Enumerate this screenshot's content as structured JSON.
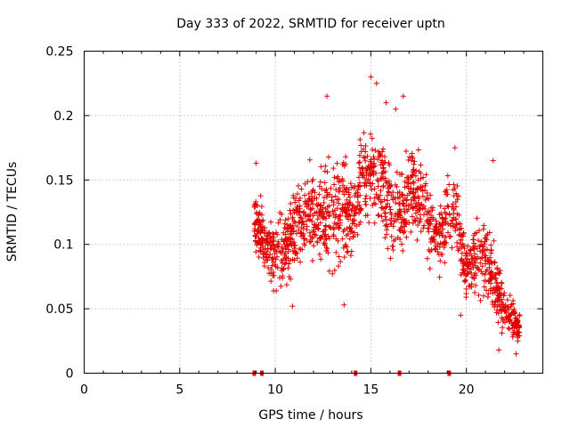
{
  "chart_data": {
    "type": "scatter",
    "title": "Day 333 of 2022, SRMTID for receiver uptn",
    "xlabel": "GPS time / hours",
    "ylabel": "SRMTID / TECUs",
    "xlim": [
      0,
      24
    ],
    "ylim": [
      0,
      0.25
    ],
    "xticks": [
      0,
      5,
      10,
      15,
      20
    ],
    "xtick_labels": [
      "0",
      "5",
      "10",
      "15",
      "20"
    ],
    "yticks": [
      0,
      0.05,
      0.1,
      0.15,
      0.2,
      0.25
    ],
    "ytick_labels": [
      "0",
      "0.05",
      "0.1",
      "0.15",
      "0.2",
      "0.25"
    ],
    "grid": true,
    "marker": "+",
    "color": "#e00000",
    "gap_markers_x": [
      8.9,
      9.3,
      14.2,
      16.5,
      19.1
    ],
    "series_envelope": {
      "note": "approximate median and spread of the dense point cloud, per hour bin",
      "x": [
        8.9,
        9.5,
        10.0,
        10.5,
        11.0,
        11.5,
        12.0,
        12.5,
        13.0,
        13.5,
        14.0,
        14.5,
        15.0,
        15.5,
        16.0,
        16.5,
        17.0,
        17.5,
        18.0,
        18.5,
        19.0,
        19.5,
        20.0,
        20.5,
        21.0,
        21.5,
        22.0,
        22.5,
        22.8
      ],
      "median": [
        0.12,
        0.1,
        0.09,
        0.1,
        0.11,
        0.12,
        0.125,
        0.12,
        0.12,
        0.125,
        0.12,
        0.15,
        0.155,
        0.145,
        0.13,
        0.125,
        0.145,
        0.14,
        0.12,
        0.1,
        0.12,
        0.125,
        0.08,
        0.09,
        0.09,
        0.07,
        0.05,
        0.04,
        0.035
      ],
      "spread": [
        0.03,
        0.03,
        0.03,
        0.035,
        0.035,
        0.035,
        0.04,
        0.045,
        0.05,
        0.045,
        0.04,
        0.04,
        0.045,
        0.045,
        0.04,
        0.04,
        0.04,
        0.035,
        0.035,
        0.03,
        0.035,
        0.035,
        0.03,
        0.03,
        0.035,
        0.03,
        0.02,
        0.015,
        0.012
      ]
    },
    "highlights": [
      {
        "x": 12.7,
        "y": 0.215
      },
      {
        "x": 15.0,
        "y": 0.23
      },
      {
        "x": 15.3,
        "y": 0.225
      },
      {
        "x": 16.7,
        "y": 0.215
      },
      {
        "x": 15.8,
        "y": 0.21
      },
      {
        "x": 16.3,
        "y": 0.205
      },
      {
        "x": 19.4,
        "y": 0.175
      },
      {
        "x": 21.4,
        "y": 0.165
      },
      {
        "x": 9.0,
        "y": 0.163
      },
      {
        "x": 13.6,
        "y": 0.053
      },
      {
        "x": 10.9,
        "y": 0.052
      },
      {
        "x": 22.6,
        "y": 0.015
      },
      {
        "x": 21.7,
        "y": 0.018
      },
      {
        "x": 19.7,
        "y": 0.045
      }
    ]
  }
}
